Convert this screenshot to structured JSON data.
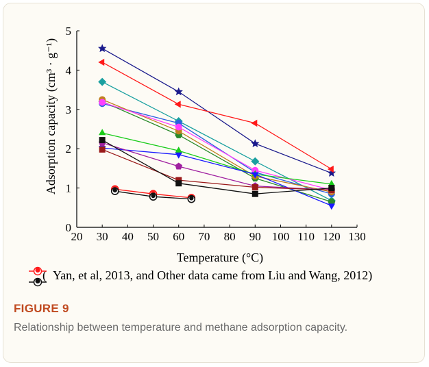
{
  "figure": {
    "label": "FIGURE 9",
    "caption": "Relationship between temperature and methane adsorption capacity."
  },
  "chart_data": {
    "type": "line",
    "xlabel": "Temperature (°C)",
    "ylabel": "Adsorption capacity (cm³ · g⁻¹)",
    "xlim": [
      20,
      130
    ],
    "ylim": [
      0,
      5
    ],
    "xticks": [
      20,
      30,
      40,
      50,
      60,
      70,
      80,
      90,
      100,
      110,
      120,
      130
    ],
    "yticks": [
      0,
      1,
      2,
      3,
      4,
      5
    ],
    "grid": false,
    "legend_note": "Yan, et al, 2013, and Other data came from Liu and Wang, 2012)",
    "legend_open": "(",
    "series": [
      {
        "color": "#1a1a8c",
        "marker": "star",
        "x": [
          30,
          60,
          90,
          120
        ],
        "y": [
          4.55,
          3.45,
          2.13,
          1.38
        ]
      },
      {
        "color": "#ff1a1a",
        "marker": "tri-left",
        "x": [
          30,
          60,
          90,
          120
        ],
        "y": [
          4.2,
          3.13,
          2.65,
          1.48
        ]
      },
      {
        "color": "#1aa0a0",
        "marker": "diamond",
        "x": [
          30,
          60,
          90,
          120
        ],
        "y": [
          3.7,
          2.7,
          1.68,
          0.68
        ]
      },
      {
        "color": "#2a60e0",
        "marker": "circle",
        "x": [
          30,
          60,
          90,
          120
        ],
        "y": [
          3.15,
          2.65,
          1.4,
          0.85
        ]
      },
      {
        "color": "#2a8a2a",
        "marker": "hexagon",
        "x": [
          30,
          60,
          90,
          120
        ],
        "y": [
          3.2,
          2.35,
          1.25,
          0.65
        ]
      },
      {
        "color": "#c08020",
        "marker": "circle",
        "x": [
          30,
          60,
          90,
          120
        ],
        "y": [
          3.25,
          2.45,
          1.3,
          0.9
        ]
      },
      {
        "color": "#ff40ff",
        "marker": "circle",
        "x": [
          30,
          60,
          90,
          120
        ],
        "y": [
          3.18,
          2.55,
          1.45,
          0.95
        ]
      },
      {
        "color": "#1acc1a",
        "marker": "tri-up",
        "x": [
          30,
          60,
          90,
          120
        ],
        "y": [
          2.4,
          1.95,
          1.35,
          1.1
        ]
      },
      {
        "color": "#1a1aff",
        "marker": "tri-down",
        "x": [
          30,
          60,
          90,
          120
        ],
        "y": [
          2.02,
          1.85,
          1.35,
          0.55
        ]
      },
      {
        "color": "#a020a0",
        "marker": "pentagon",
        "x": [
          30,
          60,
          90,
          120
        ],
        "y": [
          2.15,
          1.55,
          1.05,
          0.95
        ]
      },
      {
        "color": "#9a1a1a",
        "marker": "square",
        "x": [
          30,
          60,
          90,
          120
        ],
        "y": [
          1.98,
          1.2,
          1.02,
          0.95
        ]
      },
      {
        "color": "#111111",
        "marker": "square",
        "x": [
          30,
          60,
          90,
          120
        ],
        "y": [
          2.22,
          1.12,
          0.85,
          1.0
        ]
      },
      {
        "color": "#ff1a1a",
        "marker": "ring",
        "x": [
          35,
          50,
          65
        ],
        "y": [
          0.97,
          0.85,
          0.75
        ]
      },
      {
        "color": "#111111",
        "marker": "ring",
        "x": [
          35,
          50,
          65
        ],
        "y": [
          0.92,
          0.78,
          0.72
        ]
      }
    ]
  }
}
